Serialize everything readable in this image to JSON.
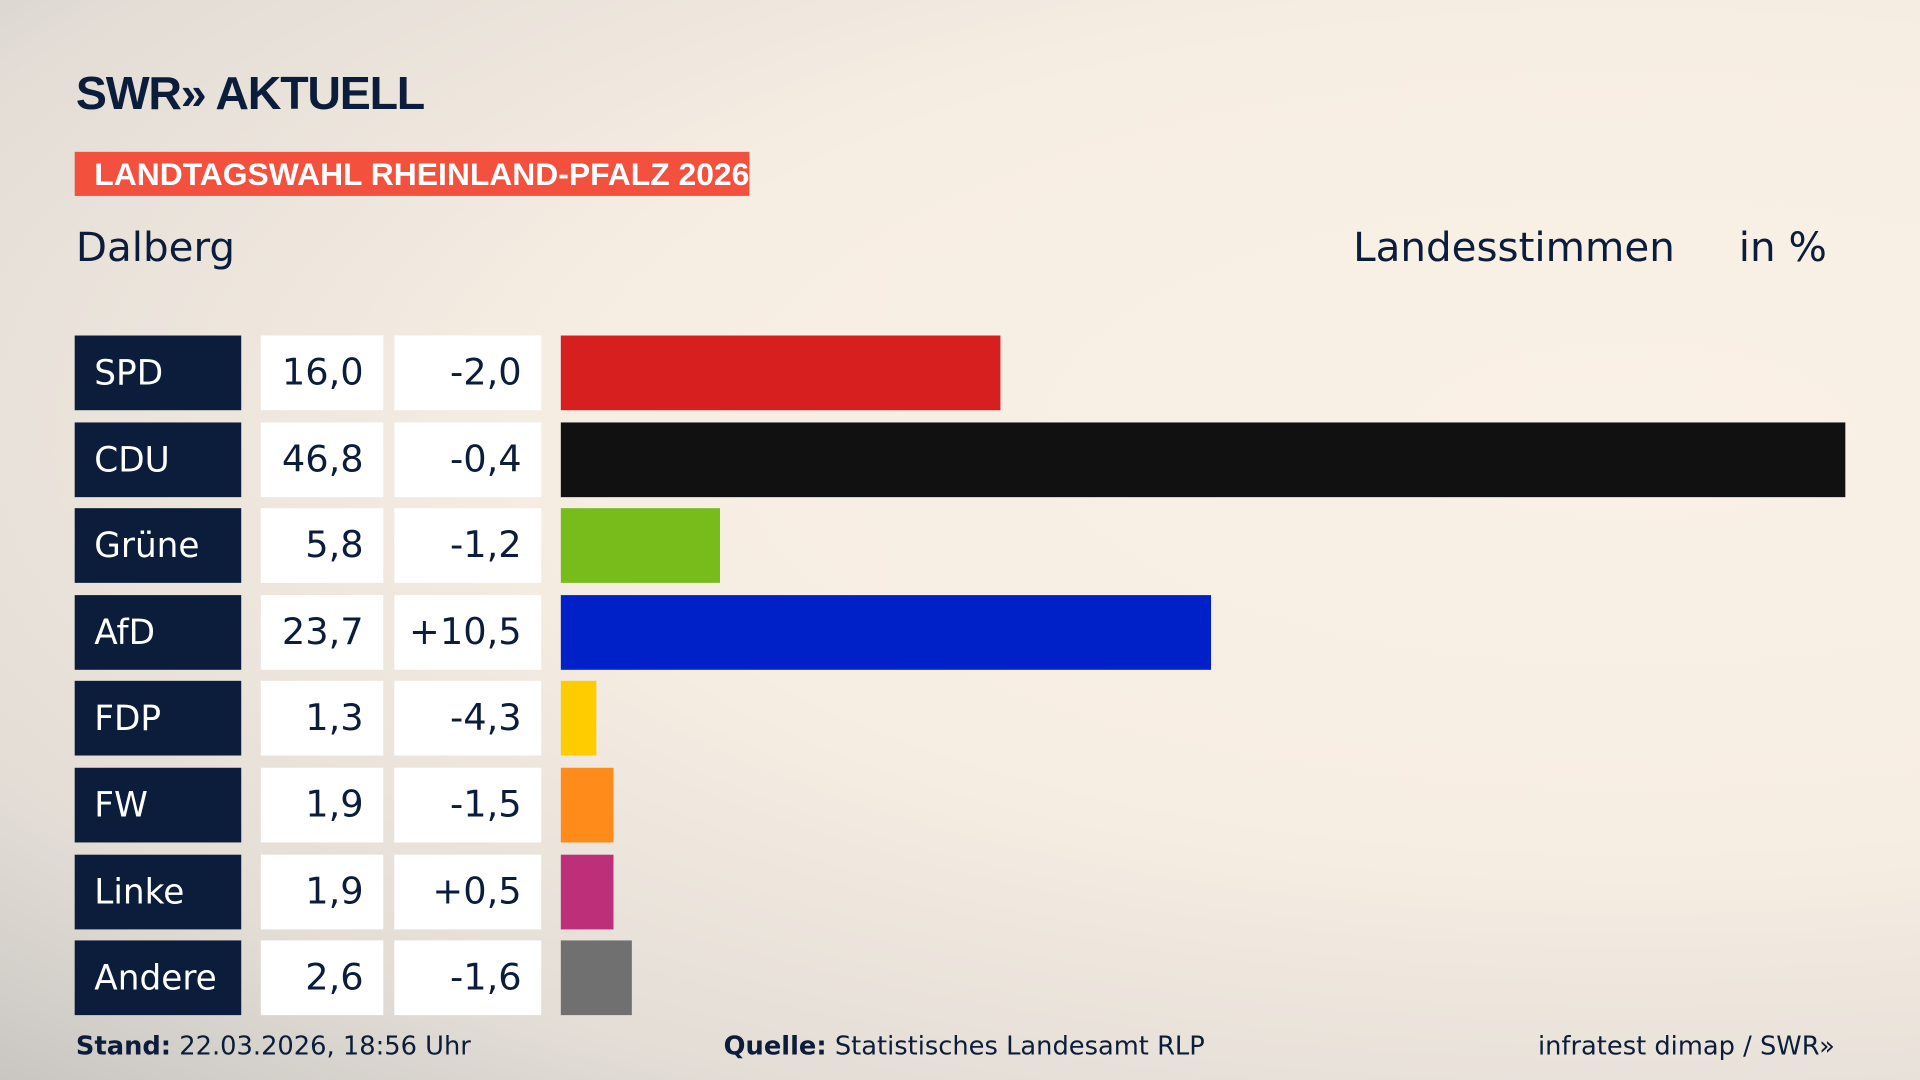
{
  "brand": {
    "logo": "SWR» AKTUELL",
    "kicker": "LANDTAGSWAHL RHEINLAND-PFALZ 2026"
  },
  "header": {
    "location": "Dalberg",
    "measure": "Landesstimmen",
    "unit": "in %"
  },
  "chart_data": {
    "type": "bar",
    "orientation": "horizontal",
    "xlim": [
      0,
      46.8
    ],
    "categories": [
      "SPD",
      "CDU",
      "Grüne",
      "AfD",
      "FDP",
      "FW",
      "Linke",
      "Andere"
    ],
    "values": [
      16.0,
      46.8,
      5.8,
      23.7,
      1.3,
      1.9,
      1.9,
      2.6
    ],
    "value_labels": [
      "16,0",
      "46,8",
      "5,8",
      "23,7",
      "1,3",
      "1,9",
      "1,9",
      "2,6"
    ],
    "diff_labels": [
      "-2,0",
      "-0,4",
      "-1,2",
      "+10,5",
      "-4,3",
      "-1,5",
      "+0,5",
      "-1,6"
    ],
    "colors": [
      "#d81f20",
      "#111111",
      "#78bc1c",
      "#0021c8",
      "#ffcc00",
      "#ff8c1a",
      "#be2f7a",
      "#707070"
    ]
  },
  "footer": {
    "stand_label": "Stand:",
    "stand_value": "22.03.2026, 18:56 Uhr",
    "source_label": "Quelle:",
    "source_value": "Statistisches Landesamt RLP",
    "credit": "infratest dimap / SWR»"
  }
}
